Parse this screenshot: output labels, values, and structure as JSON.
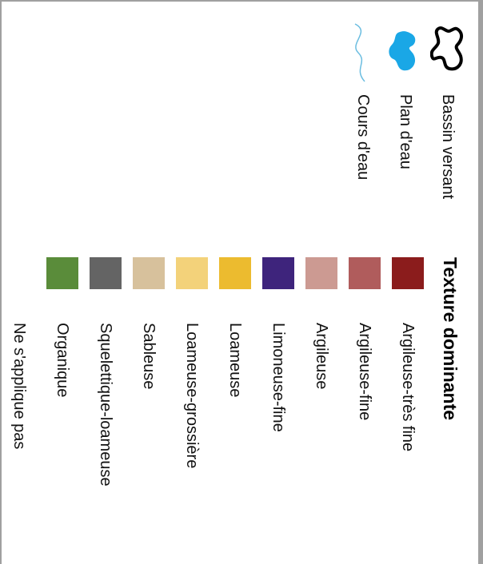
{
  "legend": {
    "features": [
      {
        "label": "Bassin versant",
        "icon": "watershed-outline-icon",
        "color": "#000000"
      },
      {
        "label": "Plan d'eau",
        "icon": "water-body-icon",
        "color": "#1aa7e6"
      },
      {
        "label": "Cours d'eau",
        "icon": "stream-line-icon",
        "color": "#6bbde0"
      }
    ],
    "texture_title": "Texture dominante",
    "textures": [
      {
        "label": "Argileuse-très fine",
        "color": "#8b1c1c"
      },
      {
        "label": "Argileuse-fine",
        "color": "#b05c5c"
      },
      {
        "label": "Argileuse",
        "color": "#cc9a92"
      },
      {
        "label": "Limoneuse-fine",
        "color": "#3e247c"
      },
      {
        "label": "Loameuse",
        "color": "#ecbb2f"
      },
      {
        "label": "Loameuse-grossière",
        "color": "#f3d27a"
      },
      {
        "label": "Sableuse",
        "color": "#d7c19c"
      },
      {
        "label": "Squelettique-loameuse",
        "color": "#646464"
      },
      {
        "label": "Organique",
        "color": "#5a8c3a"
      },
      {
        "label": "Ne s'applique pas",
        "color": "#ffffff"
      }
    ]
  }
}
